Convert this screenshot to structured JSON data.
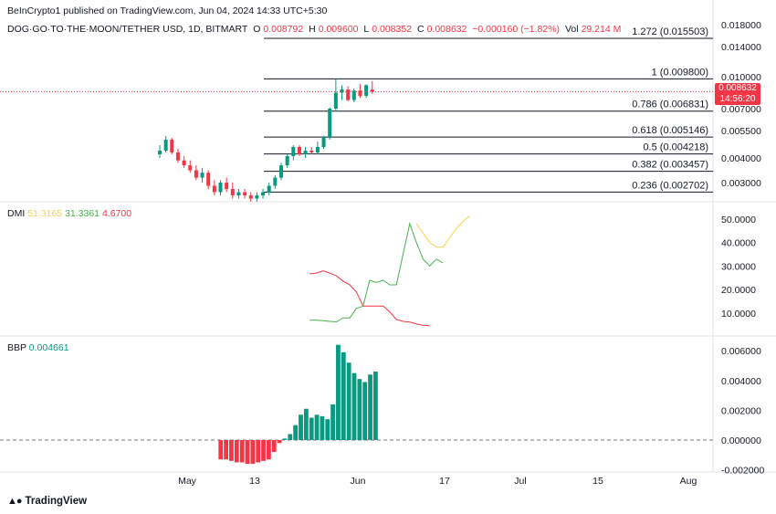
{
  "header": {
    "publisher": "BeInCrypto1 published on TradingView.com, Jun 04, 2024 14:33 UTC+5:30"
  },
  "symbol": {
    "name": "DOG·GO·TO·THE·MOON/TETHER USD, 1D, BITMART",
    "open_label": "O",
    "open": "0.008792",
    "high_label": "H",
    "high": "0.009600",
    "low_label": "L",
    "low": "0.008352",
    "close_label": "C",
    "close": "0.008632",
    "change": "−0.000160 (−1.82%)",
    "vol_label": "Vol",
    "vol": "29.214 M"
  },
  "price_tag": {
    "price": "0.008632",
    "countdown": "14:56:20"
  },
  "dmi": {
    "label": "DMI",
    "adx": "51.3165",
    "plus_di": "31.3361",
    "minus_di": "4.6700"
  },
  "bbp": {
    "label": "BBP",
    "value": "0.004661"
  },
  "branding": {
    "logo_text": "TradingView"
  },
  "colors": {
    "up": "#089981",
    "down": "#f23645",
    "adx": "#f7d14c",
    "plus_di": "#4caf50",
    "minus_di": "#f23645",
    "fib_line": "#131722"
  },
  "chart_data": {
    "type": "candlestick",
    "price_axis_ticks": [
      "0.018000",
      "0.014000",
      "0.010000",
      "0.007000",
      "0.005500",
      "0.004000",
      "0.003000"
    ],
    "time_axis_ticks": [
      "May",
      "13",
      "Jun",
      "17",
      "Jul",
      "15",
      "Aug"
    ],
    "fibonacci": [
      {
        "label": "1.272 (0.015503)",
        "price": 0.015503
      },
      {
        "label": "1 (0.009800)",
        "price": 0.0098
      },
      {
        "label": "0.786 (0.006831)",
        "price": 0.006831
      },
      {
        "label": "0.618 (0.005146)",
        "price": 0.005146
      },
      {
        "label": "0.5 (0.004218)",
        "price": 0.004218
      },
      {
        "label": "0.382 (0.003457)",
        "price": 0.003457
      },
      {
        "label": "0.236 (0.002702)",
        "price": 0.002702
      }
    ],
    "candles": [
      [
        0.0042,
        0.0047,
        0.004,
        0.0044
      ],
      [
        0.0044,
        0.0052,
        0.0043,
        0.005
      ],
      [
        0.005,
        0.0051,
        0.0042,
        0.0043
      ],
      [
        0.0043,
        0.0045,
        0.0038,
        0.0039
      ],
      [
        0.0039,
        0.0041,
        0.0036,
        0.0037
      ],
      [
        0.0037,
        0.0039,
        0.0034,
        0.0035
      ],
      [
        0.0035,
        0.0037,
        0.0031,
        0.0032
      ],
      [
        0.0032,
        0.0036,
        0.003,
        0.0034
      ],
      [
        0.0034,
        0.0035,
        0.0028,
        0.0029
      ],
      [
        0.0029,
        0.0031,
        0.0026,
        0.0027
      ],
      [
        0.0027,
        0.0031,
        0.0026,
        0.003
      ],
      [
        0.003,
        0.0032,
        0.0027,
        0.0028
      ],
      [
        0.0028,
        0.003,
        0.0025,
        0.0026
      ],
      [
        0.0026,
        0.0028,
        0.0025,
        0.0027
      ],
      [
        0.0027,
        0.0028,
        0.0025,
        0.0026
      ],
      [
        0.0026,
        0.0027,
        0.0024,
        0.0025
      ],
      [
        0.0025,
        0.0027,
        0.0024,
        0.0026
      ],
      [
        0.0026,
        0.0028,
        0.0025,
        0.0027
      ],
      [
        0.0027,
        0.003,
        0.0026,
        0.0029
      ],
      [
        0.0029,
        0.0033,
        0.0028,
        0.0032
      ],
      [
        0.0032,
        0.0038,
        0.0031,
        0.0037
      ],
      [
        0.0037,
        0.0042,
        0.0036,
        0.0041
      ],
      [
        0.0041,
        0.0047,
        0.0039,
        0.0046
      ],
      [
        0.0046,
        0.0047,
        0.0041,
        0.0042
      ],
      [
        0.0042,
        0.0046,
        0.004,
        0.0044
      ],
      [
        0.0044,
        0.0046,
        0.0042,
        0.0043
      ],
      [
        0.0043,
        0.0049,
        0.0042,
        0.0046
      ],
      [
        0.0046,
        0.0052,
        0.0045,
        0.0051
      ],
      [
        0.0051,
        0.0071,
        0.005,
        0.007
      ],
      [
        0.007,
        0.0098,
        0.0068,
        0.0085
      ],
      [
        0.0085,
        0.0092,
        0.0078,
        0.0088
      ],
      [
        0.0088,
        0.0091,
        0.0077,
        0.0078
      ],
      [
        0.0078,
        0.0089,
        0.0076,
        0.0087
      ],
      [
        0.0087,
        0.0093,
        0.008,
        0.0082
      ],
      [
        0.0082,
        0.0093,
        0.008,
        0.0092
      ],
      [
        0.0088,
        0.0096,
        0.0084,
        0.0086
      ]
    ],
    "dmi_axis_ticks": [
      "50.0000",
      "40.0000",
      "30.0000",
      "20.0000",
      "10.0000"
    ],
    "dmi_series": {
      "adx": [
        null,
        null,
        null,
        null,
        null,
        null,
        null,
        null,
        null,
        null,
        null,
        null,
        null,
        null,
        null,
        null,
        null,
        null,
        null,
        null,
        null,
        null,
        null,
        null,
        null,
        null,
        null,
        48,
        44,
        40,
        38,
        38,
        42,
        46,
        49,
        51.3
      ],
      "plus_di": [
        null,
        null,
        null,
        null,
        null,
        null,
        null,
        null,
        null,
        null,
        null,
        7,
        7,
        6.8,
        6.5,
        6.3,
        8,
        8,
        12,
        13,
        24,
        23,
        24,
        22,
        22,
        35,
        48,
        40,
        33,
        30,
        33,
        31.3
      ],
      "minus_di": [
        null,
        null,
        null,
        null,
        null,
        null,
        null,
        null,
        null,
        null,
        null,
        26.7,
        27,
        28,
        27,
        25.8,
        23.6,
        22,
        19,
        13,
        13,
        13,
        13,
        10.6,
        7.3,
        6.5,
        6.2,
        5.4,
        4.9,
        4.7
      ]
    },
    "bbp_axis_ticks": [
      "0.006000",
      "0.004000",
      "0.002000",
      "0.000000",
      "-0.002000"
    ],
    "bbp_values": [
      null,
      null,
      null,
      null,
      null,
      null,
      null,
      null,
      null,
      null,
      null,
      -0.0013,
      -0.0013,
      -0.0014,
      -0.0015,
      -0.0015,
      -0.0016,
      -0.0016,
      -0.0015,
      -0.0014,
      -0.0013,
      -0.0008,
      -0.0002,
      0.0001,
      0.0004,
      0.001,
      0.0017,
      0.0021,
      0.0015,
      0.0017,
      0.0016,
      0.0014,
      0.0024,
      0.0064,
      0.0059,
      0.0052,
      0.0045,
      0.0041,
      0.0039,
      0.0044,
      0.0046
    ]
  }
}
